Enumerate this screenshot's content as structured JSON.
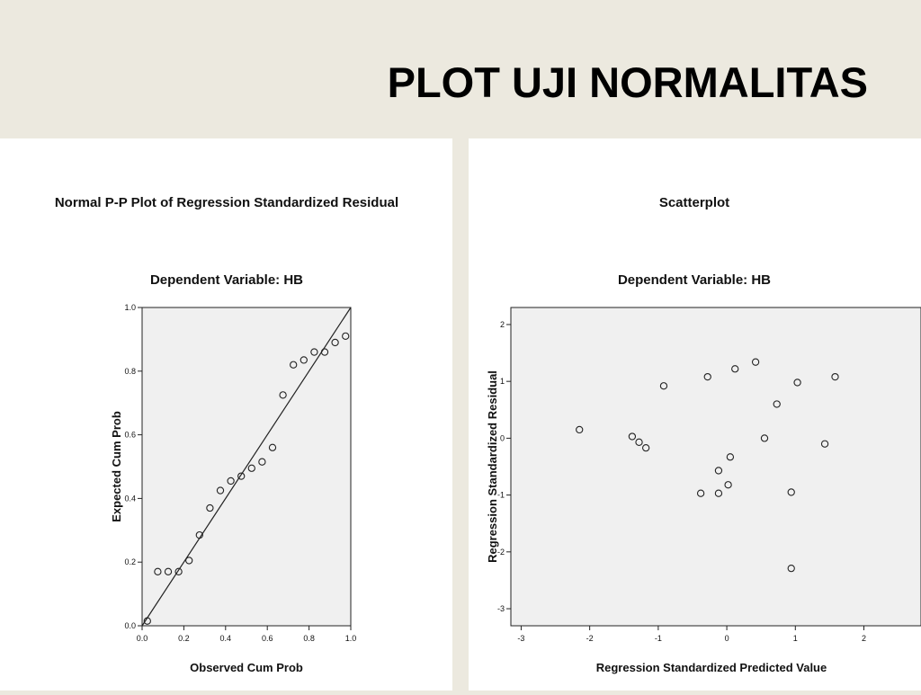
{
  "slide": {
    "title": "PLOT UJI NORMALITAS"
  },
  "colors": {
    "background": "#ece9df",
    "panel": "#ffffff",
    "plot_area": "#f0f0f0",
    "marker": "#222222"
  },
  "chart_data": [
    {
      "type": "scatter",
      "title": "Normal P-P Plot of Regression Standardized Residual",
      "subtitle": "Dependent Variable: HB",
      "xlabel": "Observed Cum Prob",
      "ylabel": "Expected Cum Prob",
      "xlim": [
        0,
        1
      ],
      "ylim": [
        0,
        1
      ],
      "x_ticks": [
        "0.0",
        "0.2",
        "0.4",
        "0.6",
        "0.8",
        "1.0"
      ],
      "y_ticks": [
        "0.0",
        "0.2",
        "0.4",
        "0.6",
        "0.8",
        "1.0"
      ],
      "grid": false,
      "reference_line": {
        "from": [
          0,
          0
        ],
        "to": [
          1,
          1
        ]
      },
      "points": [
        {
          "x": 0.025,
          "y": 0.015
        },
        {
          "x": 0.075,
          "y": 0.17
        },
        {
          "x": 0.125,
          "y": 0.17
        },
        {
          "x": 0.175,
          "y": 0.17
        },
        {
          "x": 0.225,
          "y": 0.205
        },
        {
          "x": 0.275,
          "y": 0.285
        },
        {
          "x": 0.325,
          "y": 0.37
        },
        {
          "x": 0.375,
          "y": 0.425
        },
        {
          "x": 0.425,
          "y": 0.455
        },
        {
          "x": 0.475,
          "y": 0.47
        },
        {
          "x": 0.525,
          "y": 0.495
        },
        {
          "x": 0.575,
          "y": 0.515
        },
        {
          "x": 0.625,
          "y": 0.56
        },
        {
          "x": 0.675,
          "y": 0.725
        },
        {
          "x": 0.725,
          "y": 0.82
        },
        {
          "x": 0.775,
          "y": 0.835
        },
        {
          "x": 0.825,
          "y": 0.86
        },
        {
          "x": 0.875,
          "y": 0.86
        },
        {
          "x": 0.925,
          "y": 0.89
        },
        {
          "x": 0.975,
          "y": 0.91
        }
      ]
    },
    {
      "type": "scatter",
      "title": "Scatterplot",
      "subtitle": "Dependent Variable: HB",
      "xlabel": "Regression Standardized Predicted Value",
      "ylabel": "Regression Standardized Residual",
      "xlim": [
        -3.15,
        2.4
      ],
      "ylim": [
        -3.3,
        2.3
      ],
      "x_ticks": [
        "-3",
        "-2",
        "-1",
        "0",
        "1",
        "2"
      ],
      "y_ticks": [
        "-3",
        "-2",
        "-1",
        "0",
        "1",
        "2"
      ],
      "grid": false,
      "points": [
        {
          "x": -2.15,
          "y": 0.15
        },
        {
          "x": -1.38,
          "y": 0.03
        },
        {
          "x": -1.28,
          "y": -0.07
        },
        {
          "x": -1.18,
          "y": -0.17
        },
        {
          "x": -0.92,
          "y": 0.92
        },
        {
          "x": -0.38,
          "y": -0.97
        },
        {
          "x": -0.28,
          "y": 1.08
        },
        {
          "x": -0.12,
          "y": -0.97
        },
        {
          "x": -0.12,
          "y": -0.57
        },
        {
          "x": 0.02,
          "y": -0.82
        },
        {
          "x": 0.05,
          "y": -0.33
        },
        {
          "x": 0.12,
          "y": 1.22
        },
        {
          "x": 0.42,
          "y": 1.34
        },
        {
          "x": 0.55,
          "y": 0.0
        },
        {
          "x": 0.73,
          "y": 0.6
        },
        {
          "x": 0.94,
          "y": -0.95
        },
        {
          "x": 0.94,
          "y": -2.29
        },
        {
          "x": 1.03,
          "y": 0.98
        },
        {
          "x": 1.43,
          "y": -0.1
        },
        {
          "x": 1.58,
          "y": 1.08
        }
      ]
    }
  ]
}
